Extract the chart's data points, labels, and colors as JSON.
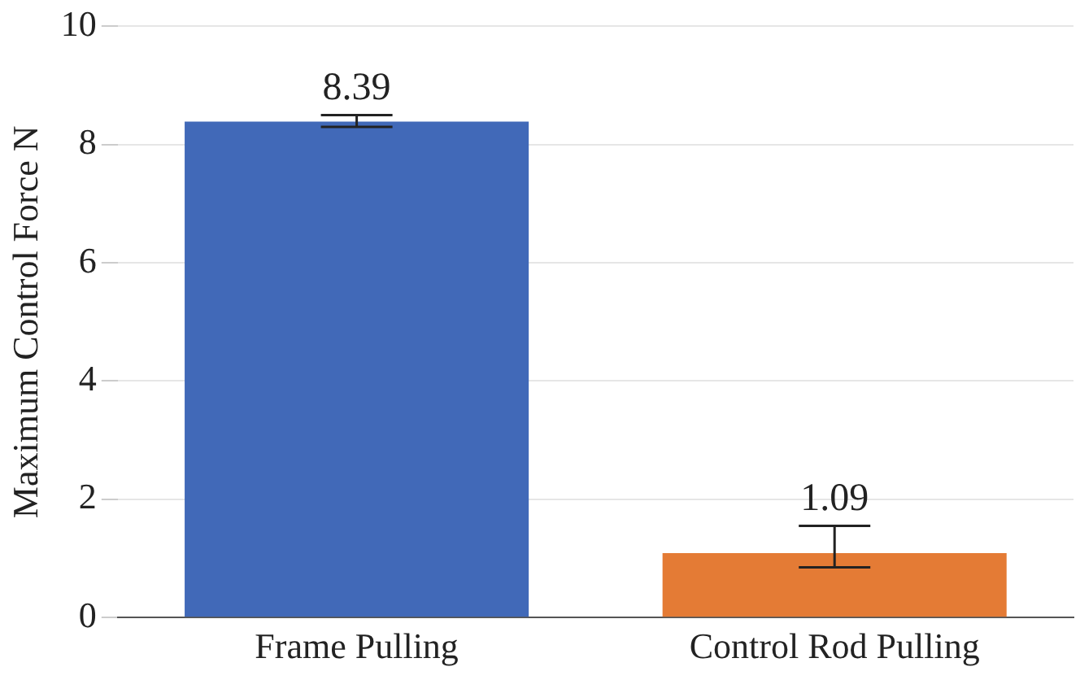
{
  "chart_data": {
    "type": "bar",
    "ylabel": "Maximum Control Force N",
    "categories": [
      "Frame Pulling",
      "Control Rod Pulling"
    ],
    "values": [
      8.39,
      1.09
    ],
    "colors": [
      "#4169b8",
      "#e47b35"
    ],
    "errors": [
      [
        8.3,
        8.5
      ],
      [
        0.85,
        1.55
      ]
    ],
    "ylim": [
      0,
      10
    ],
    "yticks": [
      0,
      2,
      4,
      6,
      8,
      10
    ],
    "grid": "y",
    "data_labels": true
  }
}
